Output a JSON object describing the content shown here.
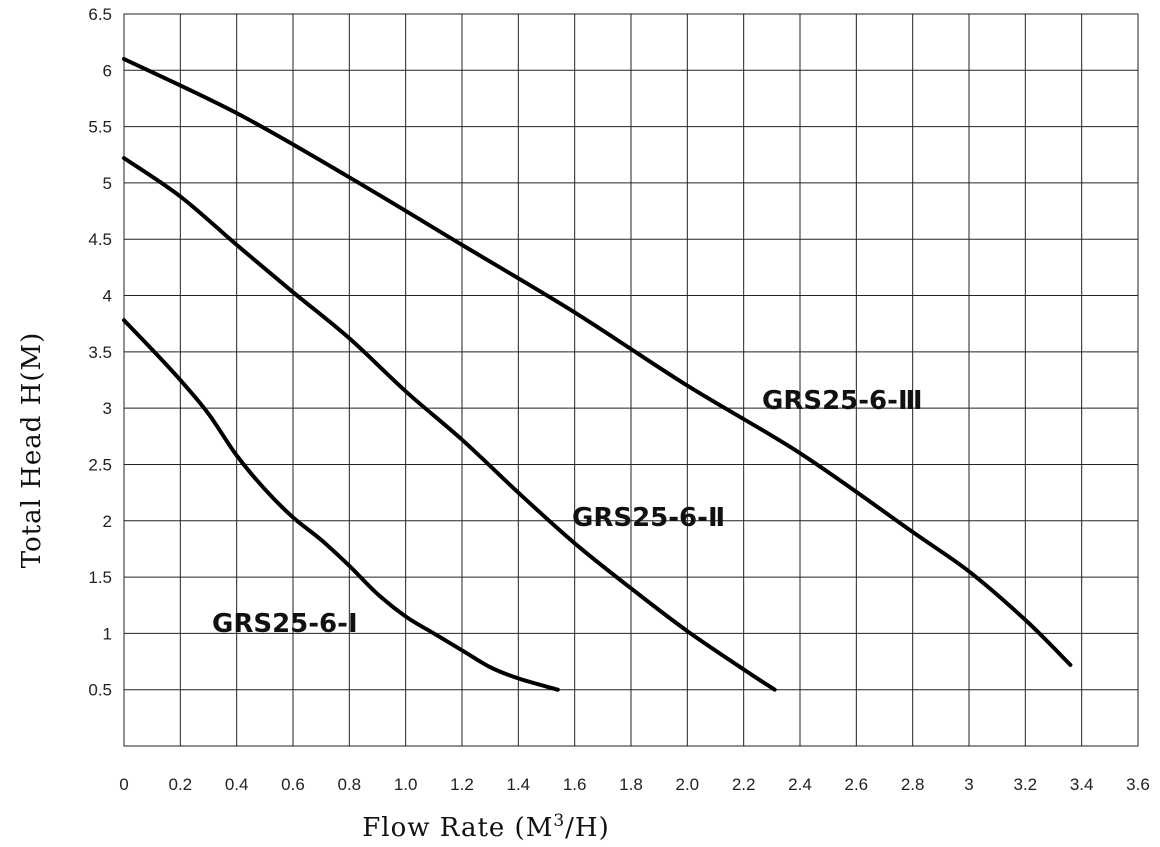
{
  "chart_data": {
    "type": "line",
    "xlabel": "Flow Rate (M",
    "xlabel_sup": "3",
    "xlabel_suffix": "/H)",
    "ylabel": "Total Head H(M)",
    "xlim": [
      0,
      3.6
    ],
    "ylim": [
      0,
      6.5
    ],
    "x_ticks": [
      "0",
      "0.2",
      "0.4",
      "0.6",
      "0.8",
      "1.0",
      "1.2",
      "1.4",
      "1.6",
      "1.8",
      "2.0",
      "2.2",
      "2.4",
      "2.6",
      "2.8",
      "3",
      "3.2",
      "3.4",
      "3.6"
    ],
    "y_ticks": [
      "0.5",
      "1",
      "1.5",
      "2",
      "2.5",
      "3",
      "3.5",
      "4",
      "4.5",
      "5",
      "5.5",
      "6",
      "6.5"
    ],
    "grid": true,
    "series": [
      {
        "name": "GRS25-6-Ⅰ",
        "x": [
          0,
          0.1,
          0.2,
          0.3,
          0.4,
          0.5,
          0.6,
          0.7,
          0.8,
          0.9,
          1.0,
          1.1,
          1.2,
          1.3,
          1.4,
          1.54
        ],
        "y": [
          3.78,
          3.52,
          3.25,
          2.95,
          2.58,
          2.28,
          2.03,
          1.83,
          1.6,
          1.35,
          1.15,
          1.0,
          0.85,
          0.7,
          0.6,
          0.5
        ]
      },
      {
        "name": "GRS25-6-Ⅱ",
        "x": [
          0,
          0.2,
          0.4,
          0.6,
          0.8,
          1.0,
          1.2,
          1.4,
          1.6,
          1.8,
          2.0,
          2.2,
          2.31
        ],
        "y": [
          5.22,
          4.88,
          4.45,
          4.03,
          3.62,
          3.15,
          2.72,
          2.25,
          1.8,
          1.4,
          1.02,
          0.68,
          0.5
        ]
      },
      {
        "name": "GRS25-6-Ⅲ",
        "x": [
          0,
          0.4,
          0.8,
          1.2,
          1.6,
          2.0,
          2.4,
          2.8,
          3.0,
          3.2,
          3.36
        ],
        "y": [
          6.1,
          5.62,
          5.05,
          4.45,
          3.85,
          3.2,
          2.6,
          1.9,
          1.55,
          1.12,
          0.72
        ]
      }
    ]
  }
}
